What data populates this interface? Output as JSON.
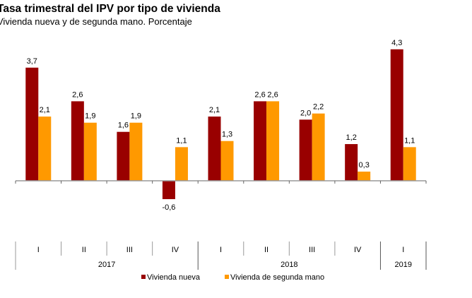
{
  "chart_data": {
    "type": "bar",
    "title": "Tasa trimestral del IPV por tipo de vivienda",
    "subtitle": "Vivienda nueva y de segunda mano. Porcentaje",
    "xlabel": "",
    "ylabel": "",
    "ylim": [
      -0.6,
      4.3
    ],
    "grid": false,
    "categories": [
      "I",
      "II",
      "III",
      "IV",
      "I",
      "II",
      "III",
      "IV",
      "I"
    ],
    "years": [
      {
        "label": "2017",
        "span": 4
      },
      {
        "label": "2018",
        "span": 4
      },
      {
        "label": "2019",
        "span": 1
      }
    ],
    "series": [
      {
        "name": "Vivienda nueva",
        "color": "#990000",
        "values": [
          3.7,
          2.6,
          1.6,
          -0.6,
          2.1,
          2.6,
          2.0,
          1.2,
          4.3
        ],
        "labels": [
          "3,7",
          "2,6",
          "1,6",
          "-0,6",
          "2,1",
          "2,6",
          "2,0",
          "1,2",
          "4,3"
        ]
      },
      {
        "name": "Vivienda de segunda mano",
        "color": "#ff9900",
        "values": [
          2.1,
          1.9,
          1.9,
          1.1,
          1.3,
          2.6,
          2.2,
          0.3,
          1.1
        ],
        "labels": [
          "2,1",
          "1,9",
          "1,9",
          "1,1",
          "1,3",
          "2,6",
          "2,2",
          "0,3",
          "1,1"
        ]
      }
    ],
    "legend_position": "bottom"
  }
}
